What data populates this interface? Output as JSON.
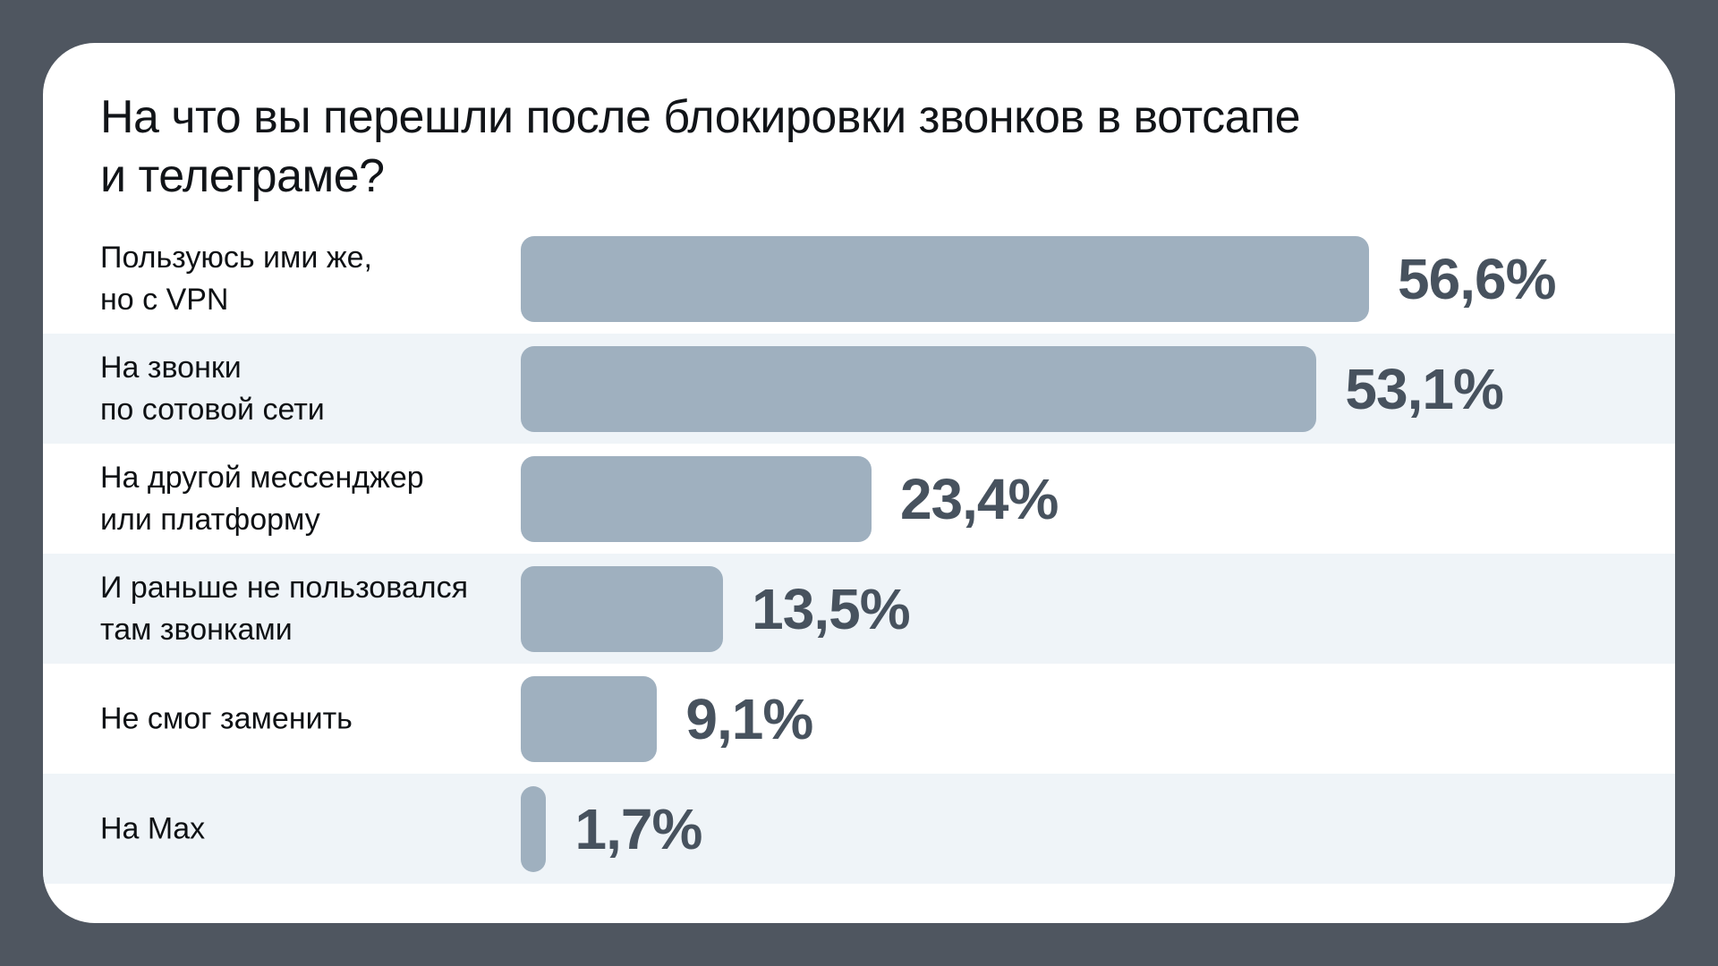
{
  "chart": {
    "title_lines": [
      "На что вы перешли после блокировки звонков в вотсапе",
      "и телеграме?"
    ],
    "rows": [
      {
        "label_lines": [
          "Пользуюсь ими же,",
          "но с VPN"
        ],
        "value": 56.6,
        "value_label": "56,6%"
      },
      {
        "label_lines": [
          "На звонки",
          "по сотовой сети"
        ],
        "value": 53.1,
        "value_label": "53,1%"
      },
      {
        "label_lines": [
          "На другой мессенджер",
          "или платформу"
        ],
        "value": 23.4,
        "value_label": "23,4%"
      },
      {
        "label_lines": [
          "И раньше не пользовался",
          "там звонками"
        ],
        "value": 13.5,
        "value_label": "13,5%"
      },
      {
        "label_lines": [
          "Не смог заменить"
        ],
        "value": 9.1,
        "value_label": "9,1%"
      },
      {
        "label_lines": [
          "На Max"
        ],
        "value": 1.7,
        "value_label": "1,7%"
      }
    ]
  },
  "colors": {
    "background": "#4f5660",
    "card": "#ffffff",
    "bar": "#9fb0bf",
    "row_band": "#eff4f8",
    "value_text": "#47525e",
    "label_text": "#0e1114"
  },
  "chart_data": {
    "type": "bar",
    "orientation": "horizontal",
    "title": "На что вы перешли после блокировки звонков в вотсапе и телеграме?",
    "categories": [
      "Пользуюсь ими же, но с VPN",
      "На звонки по сотовой сети",
      "На другой мессенджер или платформу",
      "И раньше не пользовался там звонками",
      "Не смог заменить",
      "На Max"
    ],
    "values": [
      56.6,
      53.1,
      23.4,
      13.5,
      9.1,
      1.7
    ],
    "value_labels": [
      "56,6%",
      "53,1%",
      "23,4%",
      "13,5%",
      "9,1%",
      "1,7%"
    ],
    "xlabel": "",
    "ylabel": "",
    "xlim": [
      0,
      60
    ],
    "grid": false,
    "legend": false,
    "data_labels_position": "right-of-bar"
  }
}
